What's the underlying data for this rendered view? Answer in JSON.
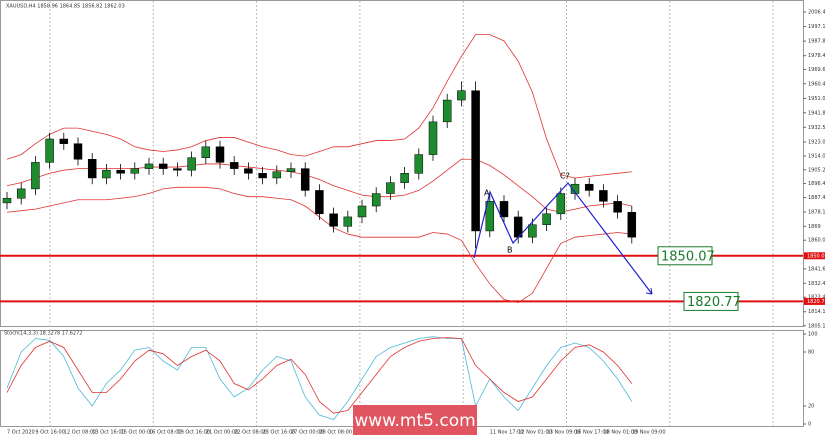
{
  "chart_data": {
    "type": "candlestick",
    "title": "XAUUSD,H4 1858.96 1864.85 1856.82 1862.03",
    "categories": [
      "7 Oct 2020",
      null,
      "9 Oct 16:00",
      null,
      "12 Oct 08:00",
      null,
      "13 Oct 16:00",
      null,
      "15 Oct 00:00",
      null,
      "16 Oct 08:00",
      null,
      "19 Oct 16:00",
      null,
      "21 Oct 00:00",
      null,
      "22 Oct 08:00",
      null,
      "23 Oct 16:00",
      null,
      "27 Oct 00:00",
      null,
      "28 Oct 08:00",
      null,
      null,
      null,
      null,
      null,
      null,
      null,
      null,
      null,
      null,
      null,
      "11 Nov 17:00",
      null,
      "12 Nov 01:00",
      null,
      "13 Nov 09:00",
      null,
      "16 Nov 17:00",
      null,
      "18 Nov 01:00",
      null,
      "19 Nov 09:00"
    ],
    "open": [
      1884,
      1887,
      1893,
      1910,
      1925,
      1922,
      1912,
      1900,
      1905,
      1903,
      1906,
      1909,
      1906,
      1905,
      1913,
      1920,
      1910,
      1906,
      1903,
      1900,
      1904,
      1906,
      1892,
      1877,
      1869,
      1875,
      1882,
      1890,
      1897,
      1903,
      1915,
      1936,
      1950,
      1956,
      1866,
      1885,
      1875,
      1862,
      1870,
      1877,
      1890,
      1896,
      1892,
      1885,
      1878
    ],
    "high": [
      1891,
      1897,
      1914,
      1929,
      1929,
      1926,
      1916,
      1909,
      1909,
      1910,
      1913,
      1913,
      1910,
      1917,
      1924,
      1924,
      1914,
      1910,
      1907,
      1908,
      1910,
      1910,
      1896,
      1881,
      1879,
      1886,
      1894,
      1901,
      1907,
      1919,
      1940,
      1954,
      1962,
      1962,
      1889,
      1889,
      1879,
      1874,
      1881,
      1894,
      1900,
      1900,
      1896,
      1889,
      1882
    ],
    "low": [
      1880,
      1883,
      1889,
      1906,
      1918,
      1908,
      1896,
      1896,
      1899,
      1899,
      1902,
      1902,
      1901,
      1901,
      1909,
      1906,
      1902,
      1899,
      1896,
      1896,
      1900,
      1888,
      1873,
      1865,
      1865,
      1871,
      1878,
      1886,
      1893,
      1899,
      1911,
      1932,
      1946,
      1855,
      1862,
      1871,
      1858,
      1858,
      1866,
      1873,
      1886,
      1888,
      1881,
      1874,
      1858
    ],
    "close": [
      1887,
      1893,
      1910,
      1925,
      1922,
      1912,
      1900,
      1905,
      1903,
      1906,
      1909,
      1906,
      1905,
      1913,
      1920,
      1910,
      1906,
      1903,
      1900,
      1904,
      1906,
      1892,
      1877,
      1869,
      1875,
      1882,
      1890,
      1897,
      1903,
      1915,
      1936,
      1950,
      1956,
      1866,
      1885,
      1875,
      1862,
      1870,
      1877,
      1890,
      1896,
      1892,
      1885,
      1878,
      1862
    ],
    "up_color": "#1e8c2e",
    "down_color": "#000000",
    "bands": {
      "color": "#e03030",
      "upper": [
        1912,
        1915,
        1922,
        1928,
        1932,
        1932,
        1930,
        1928,
        1925,
        1920,
        1918,
        1917,
        1918,
        1920,
        1924,
        1926,
        1926,
        1923,
        1920,
        1918,
        1915,
        1914,
        1917,
        1920,
        1920,
        1922,
        1924,
        1924,
        1925,
        1932,
        1945,
        1962,
        1978,
        1992,
        1992,
        1988,
        1975,
        1955,
        1925,
        1902,
        1900,
        1901,
        1902,
        1903,
        1904
      ],
      "middle": [
        1895,
        1897,
        1900,
        1903,
        1905,
        1906,
        1906,
        1906,
        1906,
        1906,
        1907,
        1907,
        1907,
        1908,
        1909,
        1909,
        1908,
        1907,
        1906,
        1905,
        1904,
        1902,
        1899,
        1895,
        1892,
        1889,
        1888,
        1888,
        1889,
        1892,
        1898,
        1905,
        1912,
        1912,
        1908,
        1902,
        1895,
        1888,
        1880,
        1878,
        1880,
        1882,
        1883,
        1884,
        1882
      ],
      "lower": [
        1878,
        1879,
        1880,
        1882,
        1884,
        1886,
        1886,
        1886,
        1887,
        1888,
        1890,
        1893,
        1894,
        1894,
        1894,
        1893,
        1890,
        1888,
        1888,
        1887,
        1886,
        1882,
        1875,
        1868,
        1864,
        1862,
        1862,
        1862,
        1862,
        1862,
        1865,
        1864,
        1860,
        1845,
        1832,
        1822,
        1820,
        1826,
        1842,
        1858,
        1862,
        1863,
        1864,
        1865,
        1864
      ]
    },
    "ylim": [
      1805,
      2011
    ],
    "yticks": [
      2006.46,
      1997.14,
      1987.8,
      1978.48,
      1969.66,
      1960.46,
      1951.06,
      1941.82,
      1932.51,
      1923.08,
      1914.06,
      1905.26,
      1896.4,
      1887.4,
      1878.16,
      1869.0,
      1860.05,
      1841.65,
      1832.4,
      1823.49,
      1814.15,
      1805.15
    ],
    "levels": [
      1850.07,
      1820.77
    ],
    "level_color": "#e01010",
    "annotations": [
      "A",
      "B",
      "C?"
    ],
    "watermark": "www.mt5.com",
    "stochastic": {
      "label": "Stoch(14,3,3) 18.3278 17.6272",
      "ylim": [
        0,
        100
      ],
      "yticks": [
        100,
        80,
        20,
        0
      ],
      "main_color": "#4fb8d8",
      "signal_color": "#e03030",
      "main": [
        40,
        80,
        95,
        93,
        75,
        40,
        20,
        45,
        60,
        82,
        85,
        70,
        60,
        85,
        85,
        50,
        30,
        40,
        60,
        75,
        70,
        30,
        10,
        5,
        25,
        50,
        75,
        85,
        90,
        95,
        97,
        95,
        95,
        20,
        50,
        30,
        15,
        40,
        65,
        85,
        90,
        85,
        70,
        50,
        25
      ],
      "signal": [
        35,
        65,
        85,
        92,
        85,
        60,
        35,
        35,
        50,
        70,
        82,
        78,
        65,
        75,
        82,
        70,
        45,
        38,
        50,
        65,
        72,
        55,
        25,
        12,
        15,
        35,
        55,
        75,
        85,
        92,
        95,
        96,
        95,
        65,
        50,
        35,
        25,
        30,
        50,
        70,
        85,
        88,
        80,
        65,
        45
      ]
    }
  }
}
